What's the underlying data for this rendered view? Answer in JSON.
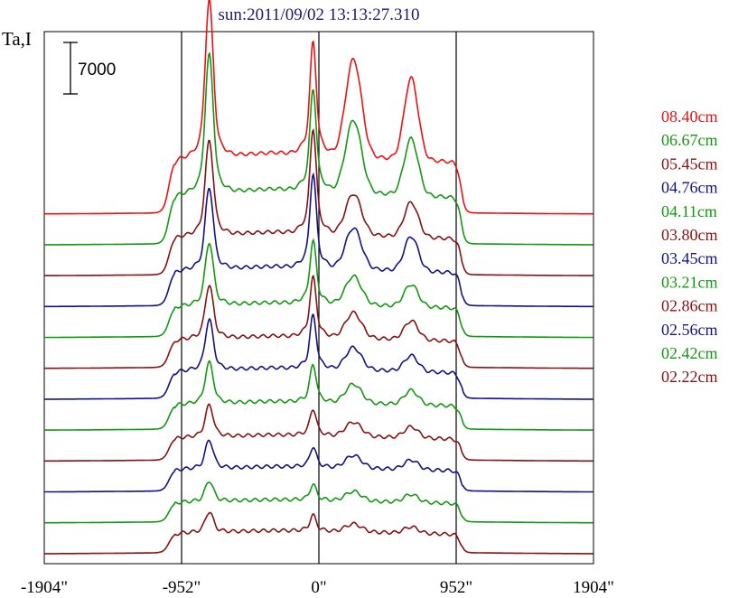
{
  "chart_data": {
    "type": "line",
    "title": "sun:2011/09/02 13:13:27.310",
    "ylabel": "Ta,I",
    "xlabel": "",
    "scale_bar_label": "7000",
    "scale_bar_value": 7000,
    "xlim": [
      -1904,
      1904
    ],
    "x_ticks": [
      {
        "value": -1904,
        "label": "-1904\""
      },
      {
        "value": -952,
        "label": "-952\""
      },
      {
        "value": 0,
        "label": "0\""
      },
      {
        "value": 952,
        "label": "952\""
      },
      {
        "value": 1904,
        "label": "1904\""
      }
    ],
    "vertical_lines": [
      -952,
      0,
      952
    ],
    "grid": false,
    "legend_position": "right",
    "colors": {
      "red": "#ee1111",
      "green": "#119911",
      "maroon": "#881111",
      "navy": "#111188"
    },
    "series": [
      {
        "name": "08.40cm",
        "color": "#ee1111",
        "peaks": [
          1.0,
          0.72,
          0.62,
          0.52
        ]
      },
      {
        "name": "06.67cm",
        "color": "#119911",
        "peaks": [
          0.88,
          0.65,
          0.46,
          0.36
        ]
      },
      {
        "name": "05.45cm",
        "color": "#881111",
        "peaks": [
          0.6,
          0.67,
          0.26,
          0.22
        ]
      },
      {
        "name": "04.76cm",
        "color": "#111188",
        "peaks": [
          0.52,
          0.6,
          0.26,
          0.22
        ]
      },
      {
        "name": "04.11cm",
        "color": "#119911",
        "peaks": [
          0.4,
          0.4,
          0.18,
          0.14
        ]
      },
      {
        "name": "03.80cm",
        "color": "#881111",
        "peaks": [
          0.34,
          0.38,
          0.16,
          0.12
        ]
      },
      {
        "name": "03.45cm",
        "color": "#111188",
        "peaks": [
          0.32,
          0.34,
          0.14,
          0.1
        ]
      },
      {
        "name": "03.21cm",
        "color": "#119911",
        "peaks": [
          0.26,
          0.24,
          0.12,
          0.09
        ]
      },
      {
        "name": "02.86cm",
        "color": "#881111",
        "peaks": [
          0.2,
          0.17,
          0.09,
          0.07
        ]
      },
      {
        "name": "02.56cm",
        "color": "#111188",
        "peaks": [
          0.18,
          0.13,
          0.08,
          0.06
        ]
      },
      {
        "name": "02.42cm",
        "color": "#119911",
        "peaks": [
          0.13,
          0.1,
          0.06,
          0.05
        ]
      },
      {
        "name": "02.22cm",
        "color": "#881111",
        "peaks": [
          0.13,
          0.1,
          0.05,
          0.04
        ]
      }
    ]
  }
}
